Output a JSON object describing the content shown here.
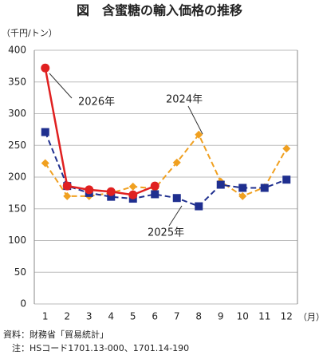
{
  "chart_data": {
    "type": "line",
    "title": "図　含蜜糖の輸入価格の推移",
    "y_unit": "（千円/トン）",
    "x_unit": "（月）",
    "categories": [
      1,
      2,
      3,
      4,
      5,
      6,
      7,
      8,
      9,
      10,
      11,
      12
    ],
    "ylim": [
      0,
      400
    ],
    "yticks": [
      0,
      50,
      100,
      150,
      200,
      250,
      300,
      350,
      400
    ],
    "grid": true,
    "series": [
      {
        "name": "2026年",
        "color": "#e02020",
        "marker": "circle",
        "dashed": false,
        "values": [
          372,
          186,
          180,
          177,
          172,
          186,
          null,
          null,
          null,
          null,
          null,
          null
        ]
      },
      {
        "name": "2025年",
        "color": "#1f2f8f",
        "marker": "square",
        "dashed": true,
        "values": [
          271,
          186,
          175,
          169,
          166,
          173,
          167,
          154,
          188,
          183,
          183,
          196
        ]
      },
      {
        "name": "2024年",
        "color": "#f0a020",
        "marker": "diamond",
        "dashed": true,
        "values": [
          222,
          170,
          170,
          175,
          185,
          182,
          223,
          267,
          193,
          170,
          184,
          245
        ]
      }
    ],
    "notes": [
      "資料：財務省「貿易統計」",
      "　注：HSコード1701.13-000、1701.14-190"
    ]
  }
}
